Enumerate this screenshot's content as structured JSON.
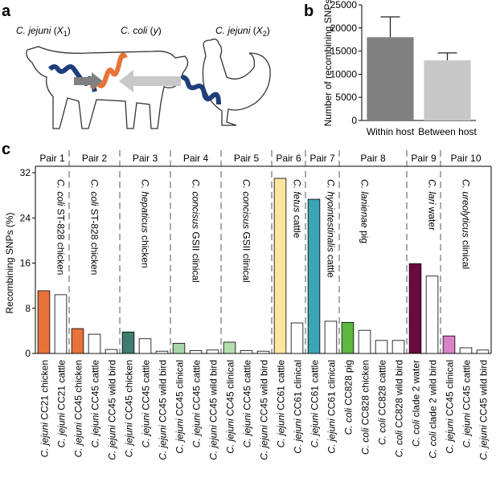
{
  "panel_labels": [
    "a",
    "b",
    "c"
  ],
  "diagram": {
    "labels": [
      [
        "C. jejuni",
        " (",
        "X",
        "1",
        ")"
      ],
      [
        "C. coli",
        " (",
        "y",
        ")"
      ],
      [
        "C. jejuni",
        " (",
        "X",
        "2",
        ")"
      ]
    ]
  },
  "chart_data": [
    {
      "type": "bar",
      "ylabel": "Number of recombining SNPs",
      "categories": [
        "Within host",
        "Between host"
      ],
      "values": [
        18000,
        13000
      ],
      "errors": [
        4400,
        1600
      ],
      "colors": [
        "#808080",
        "#c8c8c8"
      ],
      "ylim": [
        0,
        25000
      ],
      "yticks": [
        0,
        5000,
        10000,
        15000,
        20000,
        25000
      ]
    },
    {
      "type": "bar",
      "ylabel": "Recombining SNPs (%)",
      "ylim": [
        0,
        32
      ],
      "yticks": [
        0,
        8,
        16,
        24,
        32
      ],
      "groups": [
        {
          "name": "Pair 1",
          "annotation": "C. coli ST-828 chicken",
          "categories": [
            "C. jejuni CC21 chicken",
            "C. jejuni CC21 cattle"
          ],
          "values": [
            11.1,
            10.4
          ],
          "colors": [
            "#e8733a",
            "#ffffff"
          ]
        },
        {
          "name": "Pair 2",
          "annotation": "C. coli ST-828 chicken",
          "categories": [
            "C. jejuni CC45 chicken",
            "C. jejuni CC45 cattle",
            "C. jejuni CC45 wild bird"
          ],
          "values": [
            4.4,
            3.4,
            0.7
          ],
          "colors": [
            "#e8733a",
            "#ffffff",
            "#ffffff"
          ]
        },
        {
          "name": "Pair 3",
          "annotation": "C. hepaticus chicken",
          "categories": [
            "C. jejuni CC45 chicken",
            "C. jejuni CC45 cattle",
            "C. jejuni CC45 wild bird"
          ],
          "values": [
            3.8,
            2.6,
            0.4
          ],
          "colors": [
            "#3e7d6e",
            "#ffffff",
            "#ffffff"
          ]
        },
        {
          "name": "Pair 4",
          "annotation": "C. concisus GSII clinical",
          "categories": [
            "C. jejuni CC45 clinical",
            "C. jejuni CC45 cattle",
            "C. jejuni CC45 wild bird"
          ],
          "values": [
            1.8,
            0.5,
            0.6
          ],
          "colors": [
            "#a8d5a8",
            "#ffffff",
            "#ffffff"
          ]
        },
        {
          "name": "Pair 5",
          "annotation": "C. concisus GSII clinical",
          "categories": [
            "C. jejuni CC45 clinical",
            "C. jejuni CC45 cattle",
            "C. jejuni CC45 wild bird"
          ],
          "values": [
            2.0,
            0.5,
            0.4
          ],
          "colors": [
            "#b5dfb0",
            "#ffffff",
            "#ffffff"
          ]
        },
        {
          "name": "Pair 6",
          "annotation": "C. fetus cattle",
          "categories": [
            "C. jejuni CC61 cattle",
            "C. jejuni CC61 clinical"
          ],
          "values": [
            31.0,
            5.4
          ],
          "colors": [
            "#fde5a0",
            "#ffffff"
          ]
        },
        {
          "name": "Pair 7",
          "annotation": "C. hyointestinalis cattle",
          "categories": [
            "C. jejuni CC61 cattle",
            "C. jejuni CC61 clinical"
          ],
          "values": [
            27.3,
            5.7
          ],
          "colors": [
            "#3aa6b5",
            "#ffffff"
          ]
        },
        {
          "name": "Pair 8",
          "annotation": "C. lanienae pig",
          "categories": [
            "C. coli CC828 pig",
            "C. coli CC828 chicken",
            "C. coli CC828 cattle",
            "C. coli CC828 wild bird"
          ],
          "values": [
            5.5,
            4.1,
            2.3,
            2.3
          ],
          "colors": [
            "#5cb83e",
            "#ffffff",
            "#ffffff",
            "#ffffff"
          ]
        },
        {
          "name": "Pair 9",
          "annotation": "C. lari water",
          "categories": [
            "C. coli clade 2 water",
            "C. coli clade 2 wild bird"
          ],
          "values": [
            15.9,
            13.7
          ],
          "colors": [
            "#6a0a3e",
            "#ffffff"
          ]
        },
        {
          "name": "Pair 10",
          "annotation": "C. ureolyticus clinical",
          "categories": [
            "C. jejuni CC45 clinical",
            "C. jejuni CC45 cattle",
            "C. jejuni CC45 wild bird"
          ],
          "values": [
            3.1,
            1.0,
            0.6
          ],
          "colors": [
            "#d983c6",
            "#ffffff",
            "#ffffff"
          ]
        }
      ]
    }
  ]
}
